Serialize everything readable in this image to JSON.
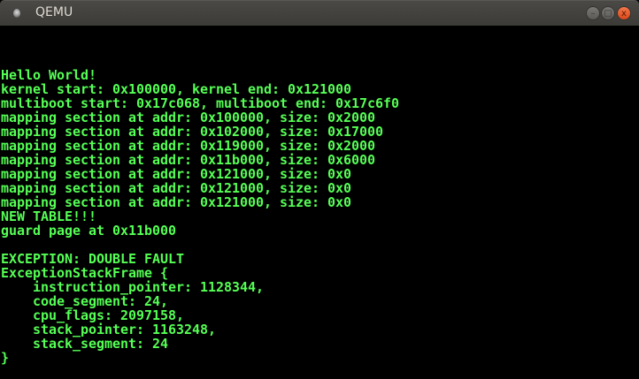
{
  "window": {
    "title": "QEMU",
    "buttons": {
      "minimize": "–",
      "maximize": "□",
      "close": "x"
    },
    "text_color": "#55ff55",
    "background_color": "#000000"
  },
  "console": {
    "lines": [
      "",
      "",
      "",
      "Hello World!",
      "kernel start: 0x100000, kernel end: 0x121000",
      "multiboot start: 0x17c068, multiboot end: 0x17c6f0",
      "mapping section at addr: 0x100000, size: 0x2000",
      "mapping section at addr: 0x102000, size: 0x17000",
      "mapping section at addr: 0x119000, size: 0x2000",
      "mapping section at addr: 0x11b000, size: 0x6000",
      "mapping section at addr: 0x121000, size: 0x0",
      "mapping section at addr: 0x121000, size: 0x0",
      "mapping section at addr: 0x121000, size: 0x0",
      "NEW TABLE!!!",
      "guard page at 0x11b000",
      "",
      "EXCEPTION: DOUBLE FAULT",
      "ExceptionStackFrame {",
      "    instruction_pointer: 1128344,",
      "    code_segment: 24,",
      "    cpu_flags: 2097158,",
      "    stack_pointer: 1163248,",
      "    stack_segment: 24",
      "}",
      ""
    ]
  }
}
